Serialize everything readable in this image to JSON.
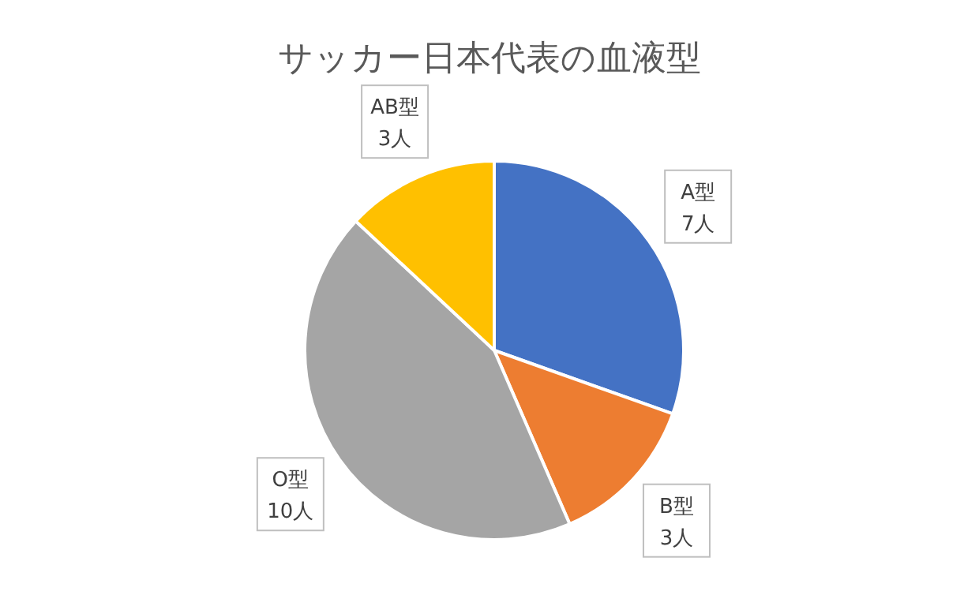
{
  "chart_data": {
    "type": "pie",
    "title": "サッカー日本代表の血液型",
    "categories": [
      "A型",
      "B型",
      "O型",
      "AB型"
    ],
    "values": [
      7,
      3,
      10,
      3
    ],
    "value_labels": [
      "7人",
      "3人",
      "10人",
      "3人"
    ],
    "colors": [
      "#4472c4",
      "#ed7d31",
      "#a5a5a5",
      "#ffc000"
    ]
  }
}
